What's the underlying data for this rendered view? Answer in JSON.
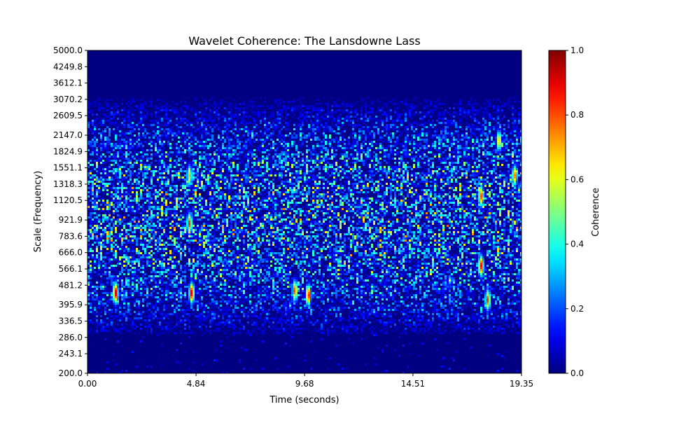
{
  "chart_data": {
    "type": "heatmap",
    "title": "Wavelet Coherence: The Lansdowne Lass",
    "xlabel": "Time (seconds)",
    "ylabel": "Scale (Frequency)",
    "xlim": [
      0.0,
      19.35
    ],
    "ylim": [
      200.0,
      5000.0
    ],
    "y_scale": "log",
    "x_tick_labels": [
      "0.00",
      "4.84",
      "9.68",
      "14.51",
      "19.35"
    ],
    "x_tick_values": [
      0.0,
      4.84,
      9.68,
      14.51,
      19.35
    ],
    "y_tick_labels": [
      "200.0",
      "243.1",
      "286.0",
      "336.5",
      "395.9",
      "481.2",
      "566.1",
      "666.0",
      "783.6",
      "921.9",
      "1120.5",
      "1318.3",
      "1551.1",
      "1824.9",
      "2147.0",
      "2609.5",
      "3070.2",
      "3612.1",
      "4249.8",
      "5000.0"
    ],
    "y_tick_values": [
      200.0,
      243.1,
      286.0,
      336.5,
      395.9,
      481.2,
      566.1,
      666.0,
      783.6,
      921.9,
      1120.5,
      1318.3,
      1551.1,
      1824.9,
      2147.0,
      2609.5,
      3070.2,
      3612.1,
      4249.8,
      5000.0
    ],
    "colorbar": {
      "label": "Coherence",
      "colormap": "jet",
      "range": [
        0.0,
        1.0
      ],
      "tick_labels": [
        "0.0",
        "0.2",
        "0.4",
        "0.6",
        "0.8",
        "1.0"
      ],
      "tick_values": [
        0.0,
        0.2,
        0.4,
        0.6,
        0.8,
        1.0
      ]
    },
    "hotspots": [
      {
        "t": 1.2,
        "scale": 450,
        "coherence": 0.95
      },
      {
        "t": 4.6,
        "scale": 450,
        "coherence": 0.92
      },
      {
        "t": 4.5,
        "scale": 900,
        "coherence": 0.85
      },
      {
        "t": 4.5,
        "scale": 1450,
        "coherence": 0.7
      },
      {
        "t": 9.2,
        "scale": 460,
        "coherence": 0.85
      },
      {
        "t": 9.8,
        "scale": 440,
        "coherence": 0.9
      },
      {
        "t": 17.5,
        "scale": 590,
        "coherence": 0.88
      },
      {
        "t": 17.8,
        "scale": 420,
        "coherence": 0.85
      },
      {
        "t": 17.5,
        "scale": 1180,
        "coherence": 0.8
      },
      {
        "t": 18.3,
        "scale": 2050,
        "coherence": 0.7
      },
      {
        "t": 19.0,
        "scale": 1450,
        "coherence": 0.75
      }
    ],
    "active_band": [
      330,
      2700
    ]
  }
}
